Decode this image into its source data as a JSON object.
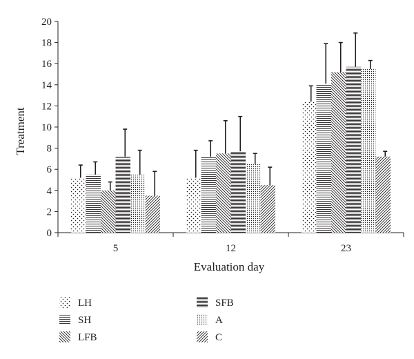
{
  "chart_data": {
    "type": "bar",
    "title": "",
    "xlabel": "Evaluation day",
    "ylabel": "Treatment",
    "categories": [
      "5",
      "12",
      "23"
    ],
    "ylim": [
      0,
      20
    ],
    "yticks": [
      0,
      2,
      4,
      6,
      8,
      10,
      12,
      14,
      16,
      18,
      20
    ],
    "grid": false,
    "legend_position": "bottom",
    "error_bars": "upper",
    "series": [
      {
        "name": "LH",
        "pattern": "dots-sparse",
        "values": [
          5.2,
          5.2,
          12.4
        ],
        "errors": [
          1.2,
          2.6,
          1.5
        ]
      },
      {
        "name": "SH",
        "pattern": "horizontal",
        "values": [
          5.5,
          7.2,
          14.1
        ],
        "errors": [
          1.2,
          1.5,
          3.8
        ]
      },
      {
        "name": "LFB",
        "pattern": "diagonal-down",
        "values": [
          4.0,
          7.5,
          15.2
        ],
        "errors": [
          0.8,
          3.1,
          2.8
        ]
      },
      {
        "name": "SFB",
        "pattern": "horizontal-dense",
        "values": [
          7.2,
          7.7,
          15.7
        ],
        "errors": [
          2.6,
          3.3,
          3.2
        ]
      },
      {
        "name": "A",
        "pattern": "dots-dense",
        "values": [
          5.5,
          6.5,
          15.5
        ],
        "errors": [
          2.3,
          1.0,
          0.8
        ]
      },
      {
        "name": "C",
        "pattern": "diagonal-up",
        "values": [
          3.5,
          4.5,
          7.2
        ],
        "errors": [
          2.3,
          1.7,
          0.5
        ]
      }
    ]
  }
}
